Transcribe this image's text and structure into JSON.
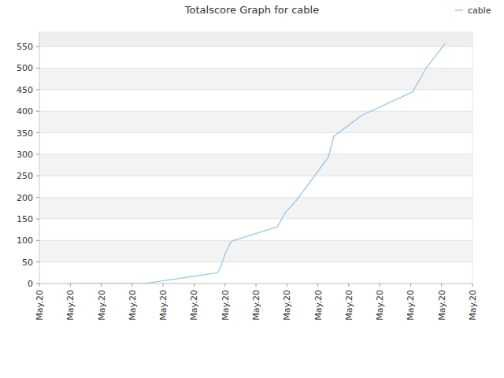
{
  "chart_data": {
    "type": "line",
    "title": "Totalscore Graph for cable",
    "x": [
      0.94,
      3.39,
      5.77,
      5.89,
      6.02,
      6.2,
      7.7,
      7.95,
      8.3,
      9.34,
      9.52,
      10.41,
      12.07,
      12.5,
      13.11
    ],
    "series": [
      {
        "name": "cable",
        "color": "#8cc4ee",
        "values": [
          0,
          0,
          25,
          45,
          72,
          98,
          132,
          165,
          192,
          293,
          342,
          390,
          445,
          500,
          557
        ]
      }
    ],
    "xlim": [
      0,
      14
    ],
    "xticks": [
      {
        "value": 0,
        "label": "May.20"
      },
      {
        "value": 1,
        "label": "May.20"
      },
      {
        "value": 2,
        "label": "May.20"
      },
      {
        "value": 3,
        "label": "May.20"
      },
      {
        "value": 4,
        "label": "May.20"
      },
      {
        "value": 5,
        "label": "May.20"
      },
      {
        "value": 6,
        "label": "May.20"
      },
      {
        "value": 7,
        "label": "May.20"
      },
      {
        "value": 8,
        "label": "May.20"
      },
      {
        "value": 9,
        "label": "May.20"
      },
      {
        "value": 10,
        "label": "May.20"
      },
      {
        "value": 11,
        "label": "May.20"
      },
      {
        "value": 12,
        "label": "May.20"
      },
      {
        "value": 13,
        "label": "May.20"
      },
      {
        "value": 14,
        "label": "May.20"
      }
    ],
    "ylim": [
      0,
      585
    ],
    "yticks": [
      0,
      50,
      100,
      150,
      200,
      250,
      300,
      350,
      400,
      450,
      500,
      550
    ],
    "grid": true,
    "legend": "top-right"
  }
}
